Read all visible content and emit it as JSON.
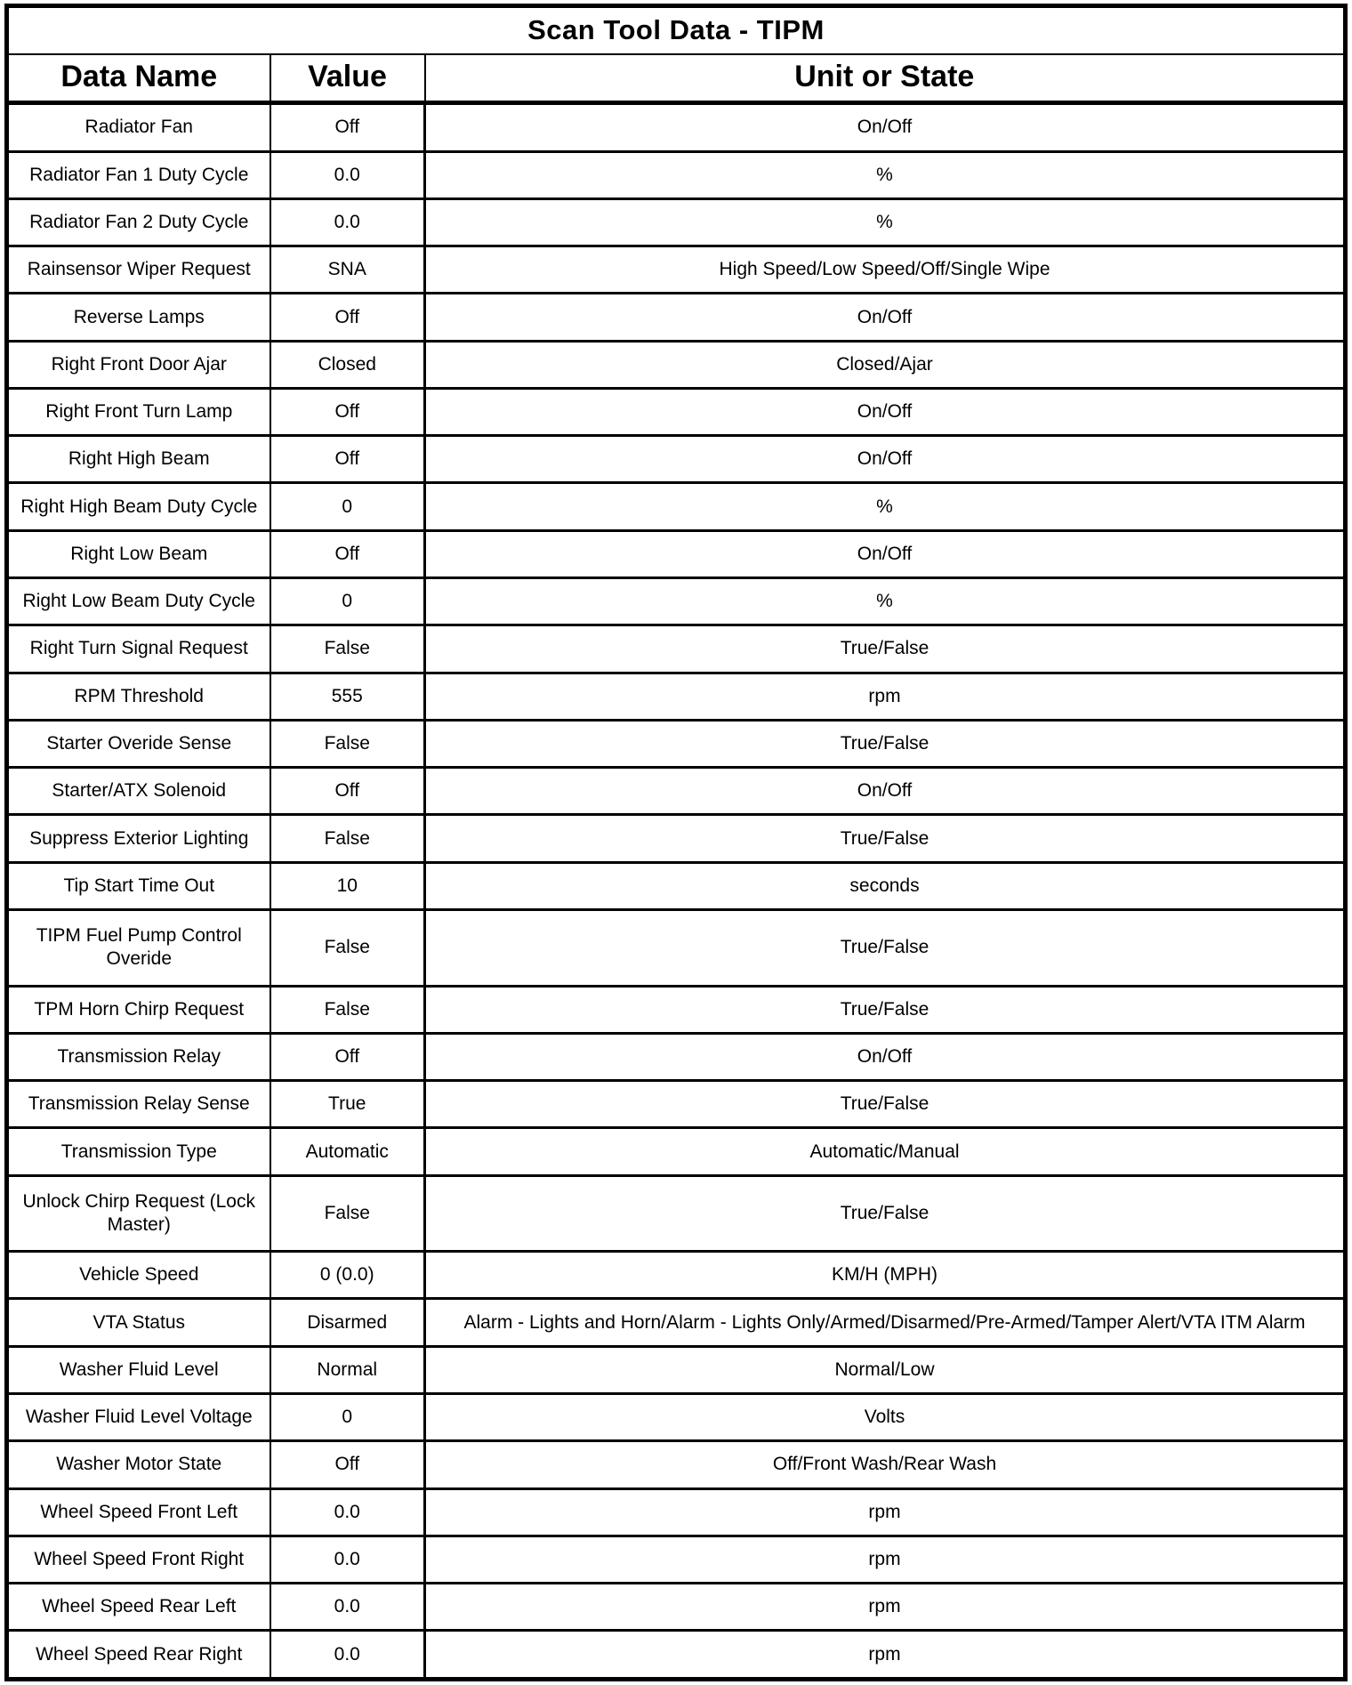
{
  "table": {
    "title": "Scan Tool Data - TIPM",
    "columns": [
      "Data Name",
      "Value",
      "Unit or State"
    ],
    "rows": [
      {
        "name": "Radiator Fan",
        "value": "Off",
        "unit": "On/Off"
      },
      {
        "name": "Radiator Fan 1 Duty Cycle",
        "value": "0.0",
        "unit": "%"
      },
      {
        "name": "Radiator Fan 2 Duty Cycle",
        "value": "0.0",
        "unit": "%"
      },
      {
        "name": "Rainsensor Wiper Request",
        "value": "SNA",
        "unit": "High Speed/Low Speed/Off/Single Wipe"
      },
      {
        "name": "Reverse Lamps",
        "value": "Off",
        "unit": "On/Off"
      },
      {
        "name": "Right Front Door Ajar",
        "value": "Closed",
        "unit": "Closed/Ajar"
      },
      {
        "name": "Right Front Turn Lamp",
        "value": "Off",
        "unit": "On/Off"
      },
      {
        "name": "Right High Beam",
        "value": "Off",
        "unit": "On/Off"
      },
      {
        "name": "Right High Beam Duty Cycle",
        "value": "0",
        "unit": "%"
      },
      {
        "name": "Right Low Beam",
        "value": "Off",
        "unit": "On/Off"
      },
      {
        "name": "Right Low Beam Duty Cycle",
        "value": "0",
        "unit": "%"
      },
      {
        "name": "Right Turn Signal Request",
        "value": "False",
        "unit": "True/False"
      },
      {
        "name": "RPM Threshold",
        "value": "555",
        "unit": "rpm"
      },
      {
        "name": "Starter Overide Sense",
        "value": "False",
        "unit": "True/False"
      },
      {
        "name": "Starter/ATX Solenoid",
        "value": "Off",
        "unit": "On/Off"
      },
      {
        "name": "Suppress Exterior Lighting",
        "value": "False",
        "unit": "True/False"
      },
      {
        "name": "Tip Start Time Out",
        "value": "10",
        "unit": "seconds"
      },
      {
        "name": "TIPM Fuel Pump Control Overide",
        "value": "False",
        "unit": "True/False"
      },
      {
        "name": "TPM Horn Chirp Request",
        "value": "False",
        "unit": "True/False"
      },
      {
        "name": "Transmission Relay",
        "value": "Off",
        "unit": "On/Off"
      },
      {
        "name": "Transmission Relay Sense",
        "value": "True",
        "unit": "True/False"
      },
      {
        "name": "Transmission Type",
        "value": "Automatic",
        "unit": "Automatic/Manual"
      },
      {
        "name": "Unlock Chirp Request (Lock Master)",
        "value": "False",
        "unit": "True/False"
      },
      {
        "name": "Vehicle Speed",
        "value": "0 (0.0)",
        "unit": "KM/H (MPH)"
      },
      {
        "name": "VTA Status",
        "value": "Disarmed",
        "unit": "Alarm - Lights and Horn/Alarm - Lights Only/Armed/Disarmed/Pre-Armed/Tamper Alert/VTA ITM Alarm"
      },
      {
        "name": "Washer Fluid Level",
        "value": "Normal",
        "unit": "Normal/Low"
      },
      {
        "name": "Washer Fluid Level Voltage",
        "value": "0",
        "unit": "Volts"
      },
      {
        "name": "Washer Motor State",
        "value": "Off",
        "unit": "Off/Front Wash/Rear Wash"
      },
      {
        "name": "Wheel Speed Front Left",
        "value": "0.0",
        "unit": "rpm"
      },
      {
        "name": "Wheel Speed Front Right",
        "value": "0.0",
        "unit": "rpm"
      },
      {
        "name": "Wheel Speed Rear Left",
        "value": "0.0",
        "unit": "rpm"
      },
      {
        "name": "Wheel Speed Rear Right",
        "value": "0.0",
        "unit": "rpm"
      }
    ],
    "colors": {
      "text": "#000000",
      "background": "#ffffff",
      "border": "#000000"
    }
  }
}
